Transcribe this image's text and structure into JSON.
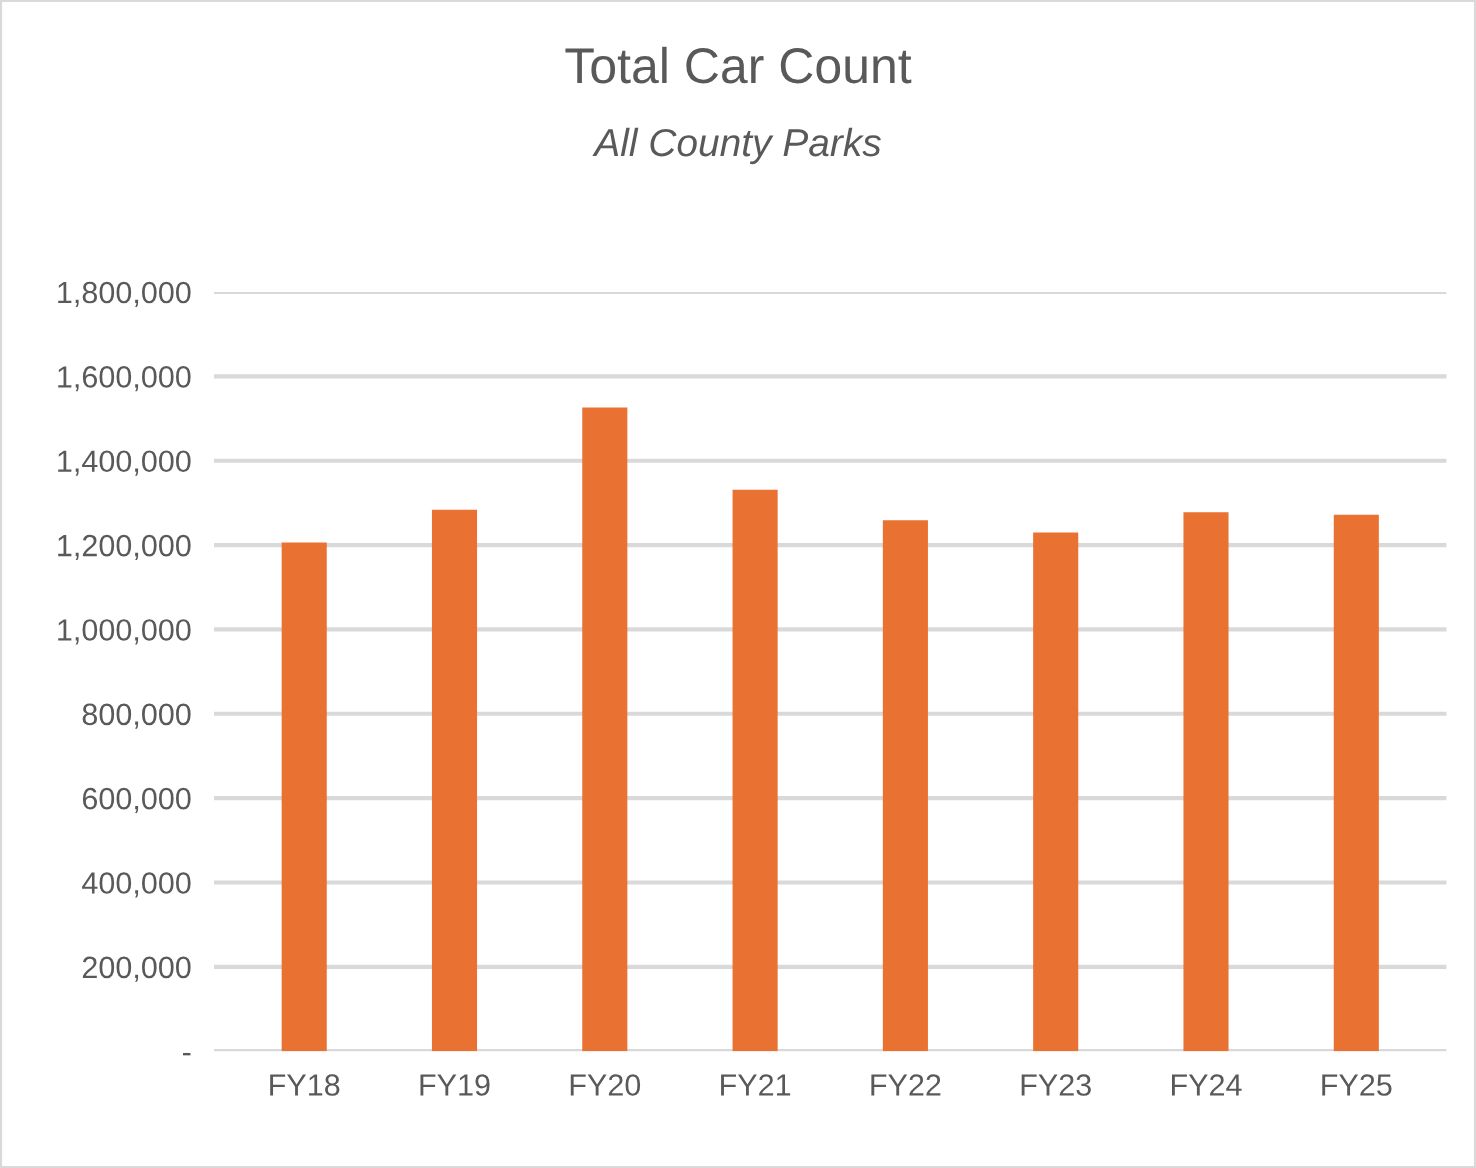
{
  "chart_data": {
    "type": "bar",
    "title": "Total Car Count",
    "subtitle": "All County Parks",
    "categories": [
      "FY18",
      "FY19",
      "FY20",
      "FY21",
      "FY22",
      "FY23",
      "FY24",
      "FY25"
    ],
    "values": [
      1206000,
      1284000,
      1526000,
      1331000,
      1259000,
      1230000,
      1278000,
      1272000
    ],
    "color": "#e97132",
    "ylim": [
      0,
      1800000
    ],
    "yticks": [
      {
        "value": 0,
        "label": "-"
      },
      {
        "value": 200000,
        "label": "200,000"
      },
      {
        "value": 400000,
        "label": "400,000"
      },
      {
        "value": 600000,
        "label": "600,000"
      },
      {
        "value": 800000,
        "label": "800,000"
      },
      {
        "value": 1000000,
        "label": "1,000,000"
      },
      {
        "value": 1200000,
        "label": "1,200,000"
      },
      {
        "value": 1400000,
        "label": "1,400,000"
      },
      {
        "value": 1600000,
        "label": "1,600,000"
      },
      {
        "value": 1800000,
        "label": "1,800,000"
      }
    ],
    "grid": "y"
  }
}
